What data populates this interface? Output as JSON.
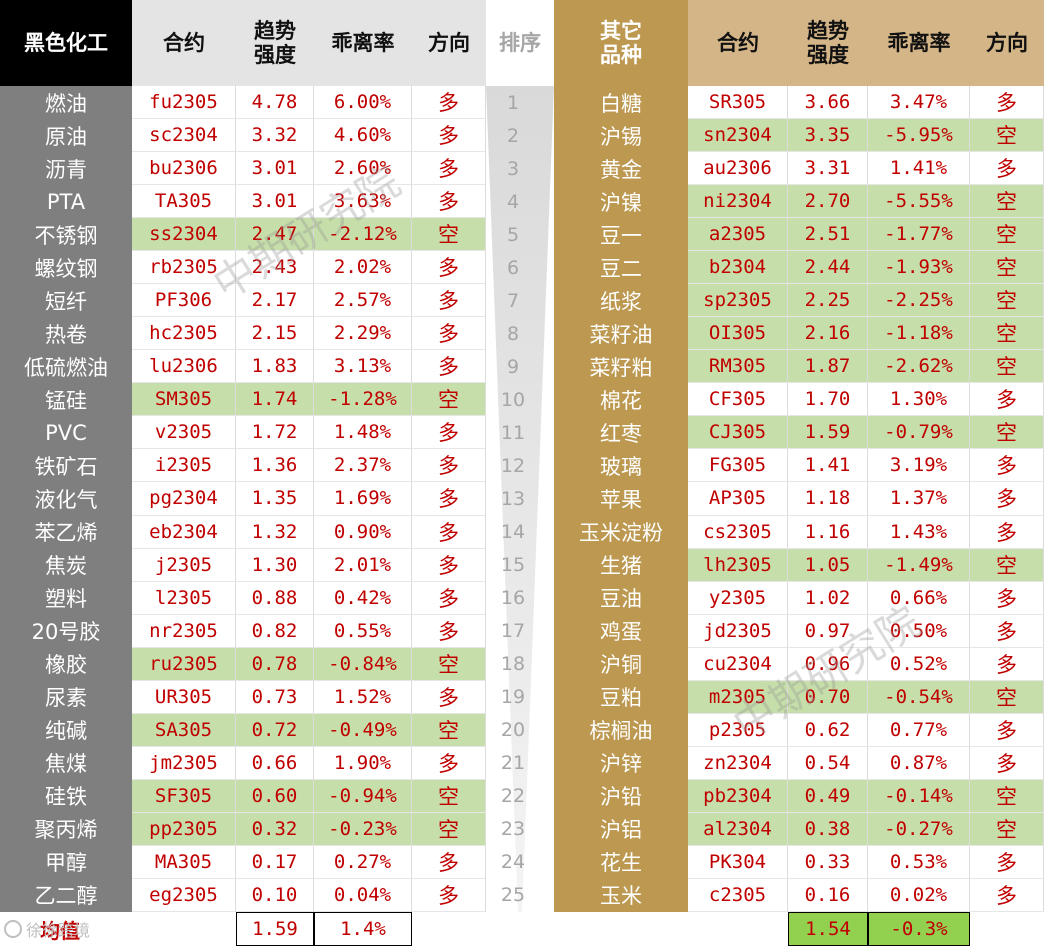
{
  "header_left": {
    "category": "黑色化工",
    "contract": "合约",
    "strength": "趋势\n强度",
    "deviation": "乖离率",
    "direction": "方向"
  },
  "header_mid": {
    "rank": "排序"
  },
  "header_right": {
    "category": "其它\n品种",
    "contract": "合约",
    "strength": "趋势\n强度",
    "deviation": "乖离率",
    "direction": "方向"
  },
  "left_rows": [
    {
      "name": "燃油",
      "contract": "fu2305",
      "strength": "4.78",
      "deviation": "6.00%",
      "direction": "多"
    },
    {
      "name": "原油",
      "contract": "sc2304",
      "strength": "3.32",
      "deviation": "4.60%",
      "direction": "多"
    },
    {
      "name": "沥青",
      "contract": "bu2306",
      "strength": "3.01",
      "deviation": "2.60%",
      "direction": "多"
    },
    {
      "name": "PTA",
      "contract": "TA305",
      "strength": "3.01",
      "deviation": "3.63%",
      "direction": "多"
    },
    {
      "name": "不锈钢",
      "contract": "ss2304",
      "strength": "2.47",
      "deviation": "-2.12%",
      "direction": "空"
    },
    {
      "name": "螺纹钢",
      "contract": "rb2305",
      "strength": "2.43",
      "deviation": "2.02%",
      "direction": "多"
    },
    {
      "name": "短纤",
      "contract": "PF306",
      "strength": "2.17",
      "deviation": "2.57%",
      "direction": "多"
    },
    {
      "name": "热卷",
      "contract": "hc2305",
      "strength": "2.15",
      "deviation": "2.29%",
      "direction": "多"
    },
    {
      "name": "低硫燃油",
      "contract": "lu2306",
      "strength": "1.83",
      "deviation": "3.13%",
      "direction": "多"
    },
    {
      "name": "锰硅",
      "contract": "SM305",
      "strength": "1.74",
      "deviation": "-1.28%",
      "direction": "空"
    },
    {
      "name": "PVC",
      "contract": "v2305",
      "strength": "1.72",
      "deviation": "1.48%",
      "direction": "多"
    },
    {
      "name": "铁矿石",
      "contract": "i2305",
      "strength": "1.36",
      "deviation": "2.37%",
      "direction": "多"
    },
    {
      "name": "液化气",
      "contract": "pg2304",
      "strength": "1.35",
      "deviation": "1.69%",
      "direction": "多"
    },
    {
      "name": "苯乙烯",
      "contract": "eb2304",
      "strength": "1.32",
      "deviation": "0.90%",
      "direction": "多"
    },
    {
      "name": "焦炭",
      "contract": "j2305",
      "strength": "1.30",
      "deviation": "2.01%",
      "direction": "多"
    },
    {
      "name": "塑料",
      "contract": "l2305",
      "strength": "0.88",
      "deviation": "0.42%",
      "direction": "多"
    },
    {
      "name": "20号胶",
      "contract": "nr2305",
      "strength": "0.82",
      "deviation": "0.55%",
      "direction": "多"
    },
    {
      "name": "橡胶",
      "contract": "ru2305",
      "strength": "0.78",
      "deviation": "-0.84%",
      "direction": "空"
    },
    {
      "name": "尿素",
      "contract": "UR305",
      "strength": "0.73",
      "deviation": "1.52%",
      "direction": "多"
    },
    {
      "name": "纯碱",
      "contract": "SA305",
      "strength": "0.72",
      "deviation": "-0.49%",
      "direction": "空"
    },
    {
      "name": "焦煤",
      "contract": "jm2305",
      "strength": "0.66",
      "deviation": "1.90%",
      "direction": "多"
    },
    {
      "name": "硅铁",
      "contract": "SF305",
      "strength": "0.60",
      "deviation": "-0.94%",
      "direction": "空"
    },
    {
      "name": "聚丙烯",
      "contract": "pp2305",
      "strength": "0.32",
      "deviation": "-0.23%",
      "direction": "空"
    },
    {
      "name": "甲醇",
      "contract": "MA305",
      "strength": "0.17",
      "deviation": "0.27%",
      "direction": "多"
    },
    {
      "name": "乙二醇",
      "contract": "eg2305",
      "strength": "0.10",
      "deviation": "0.04%",
      "direction": "多"
    }
  ],
  "ranks": [
    "1",
    "2",
    "3",
    "4",
    "5",
    "6",
    "7",
    "8",
    "9",
    "10",
    "11",
    "12",
    "13",
    "14",
    "15",
    "16",
    "17",
    "18",
    "19",
    "20",
    "21",
    "22",
    "23",
    "24",
    "25"
  ],
  "right_rows": [
    {
      "name": "白糖",
      "contract": "SR305",
      "strength": "3.66",
      "deviation": "3.47%",
      "direction": "多"
    },
    {
      "name": "沪锡",
      "contract": "sn2304",
      "strength": "3.35",
      "deviation": "-5.95%",
      "direction": "空"
    },
    {
      "name": "黄金",
      "contract": "au2306",
      "strength": "3.31",
      "deviation": "1.41%",
      "direction": "多"
    },
    {
      "name": "沪镍",
      "contract": "ni2304",
      "strength": "2.70",
      "deviation": "-5.55%",
      "direction": "空"
    },
    {
      "name": "豆一",
      "contract": "a2305",
      "strength": "2.51",
      "deviation": "-1.77%",
      "direction": "空"
    },
    {
      "name": "豆二",
      "contract": "b2304",
      "strength": "2.44",
      "deviation": "-1.93%",
      "direction": "空"
    },
    {
      "name": "纸浆",
      "contract": "sp2305",
      "strength": "2.25",
      "deviation": "-2.25%",
      "direction": "空"
    },
    {
      "name": "菜籽油",
      "contract": "OI305",
      "strength": "2.16",
      "deviation": "-1.18%",
      "direction": "空"
    },
    {
      "name": "菜籽粕",
      "contract": "RM305",
      "strength": "1.87",
      "deviation": "-2.62%",
      "direction": "空"
    },
    {
      "name": "棉花",
      "contract": "CF305",
      "strength": "1.70",
      "deviation": "1.30%",
      "direction": "多"
    },
    {
      "name": "红枣",
      "contract": "CJ305",
      "strength": "1.59",
      "deviation": "-0.79%",
      "direction": "空"
    },
    {
      "name": "玻璃",
      "contract": "FG305",
      "strength": "1.41",
      "deviation": "3.19%",
      "direction": "多"
    },
    {
      "name": "苹果",
      "contract": "AP305",
      "strength": "1.18",
      "deviation": "1.37%",
      "direction": "多"
    },
    {
      "name": "玉米淀粉",
      "contract": "cs2305",
      "strength": "1.16",
      "deviation": "1.43%",
      "direction": "多"
    },
    {
      "name": "生猪",
      "contract": "lh2305",
      "strength": "1.05",
      "deviation": "-1.49%",
      "direction": "空"
    },
    {
      "name": "豆油",
      "contract": "y2305",
      "strength": "1.02",
      "deviation": "0.66%",
      "direction": "多"
    },
    {
      "name": "鸡蛋",
      "contract": "jd2305",
      "strength": "0.97",
      "deviation": "0.50%",
      "direction": "多"
    },
    {
      "name": "沪铜",
      "contract": "cu2304",
      "strength": "0.96",
      "deviation": "0.52%",
      "direction": "多"
    },
    {
      "name": "豆粕",
      "contract": "m2305",
      "strength": "0.70",
      "deviation": "-0.54%",
      "direction": "空"
    },
    {
      "name": "棕榈油",
      "contract": "p2305",
      "strength": "0.62",
      "deviation": "0.77%",
      "direction": "多"
    },
    {
      "name": "沪锌",
      "contract": "zn2304",
      "strength": "0.54",
      "deviation": "0.87%",
      "direction": "多"
    },
    {
      "name": "沪铅",
      "contract": "pb2304",
      "strength": "0.49",
      "deviation": "-0.14%",
      "direction": "空"
    },
    {
      "name": "沪铝",
      "contract": "al2304",
      "strength": "0.38",
      "deviation": "-0.27%",
      "direction": "空"
    },
    {
      "name": "花生",
      "contract": "PK304",
      "strength": "0.33",
      "deviation": "0.53%",
      "direction": "多"
    },
    {
      "name": "玉米",
      "contract": "c2305",
      "strength": "0.16",
      "deviation": "0.02%",
      "direction": "多"
    }
  ],
  "footer": {
    "avg_label": "均值",
    "left_avg_strength": "1.59",
    "left_avg_deviation": "1.4%",
    "right_avg_strength": "1.54",
    "right_avg_deviation": "-0.3%"
  },
  "watermark": {
    "text": "中期研究院",
    "logo_text": "徐徐跨境"
  },
  "colors": {
    "left_category_bg": "#7f7f7f",
    "right_category_bg": "#bc9850",
    "header_gold": "#d4b587",
    "short_row_green": "#c6dfaa",
    "avg_green": "#92d050",
    "data_red": "#c00000",
    "rank_grey": "#a6a6a6"
  }
}
